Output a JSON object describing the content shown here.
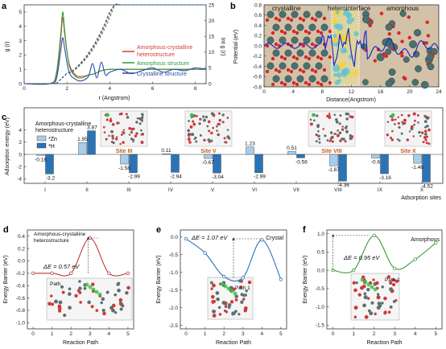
{
  "panel_a": {
    "letter": "a",
    "ylabel_left": "g (r)",
    "ylabel_right": "Int g (r)",
    "xlabel": "r (Angstrom)",
    "xticks": [
      "0",
      "2",
      "4",
      "6",
      "8"
    ],
    "yticks_left": [
      "0",
      "1",
      "2",
      "3",
      "4",
      "5"
    ],
    "yticks_right": [
      "0",
      "5",
      "10",
      "15",
      "20",
      "25"
    ],
    "legend": {
      "amorphous_crystalline": "Amorphous-crystalline heterostructure",
      "amorphous": "Amorphous structure",
      "crystalline": "Crystalline structure"
    }
  },
  "panel_b": {
    "letter": "b",
    "ylabel": "Potential (eV)",
    "xlabel": "Distance(Angstrom)",
    "region_crystalline": "crystalline",
    "region_interface": "heterointerface",
    "region_amorphous": "amorphous",
    "xticks": [
      "0",
      "4",
      "8",
      "12",
      "16",
      "20",
      "24"
    ],
    "yticks": [
      "0.8",
      "0.6",
      "0.4",
      "0.2",
      "0.0",
      "-0.2",
      "-0.4",
      "-0.6",
      "-0.8"
    ]
  },
  "panel_c": {
    "letter": "c",
    "ylabel": "Adsorption energy (eV)",
    "xlabel": "Adsorption sites",
    "structure_title": "Amorphous-crystalline heterostructure",
    "legend_zn": "*Zn",
    "legend_h": "*H",
    "yticks": [
      "4",
      "2",
      "0",
      "-2",
      "-4"
    ],
    "site_labels": [
      "Site III",
      "Site V",
      "Site VIII",
      "Site X"
    ]
  },
  "panel_d": {
    "letter": "d",
    "title": "Amorphous-crystalline heterostructure",
    "delta_e": "ΔE = 0.57 eV",
    "path_label": "Path",
    "ylabel": "Energy Barrier (eV)",
    "xlabel": "Reaction Path",
    "xticks": [
      "0",
      "1",
      "2",
      "3",
      "4",
      "5"
    ],
    "yticks": [
      "0.4",
      "0.2",
      "0.0",
      "-0.2",
      "-0.4",
      "-0.6",
      "-0.8",
      "-1.0"
    ]
  },
  "panel_e": {
    "letter": "e",
    "title": "Crystal",
    "delta_e": "ΔE = 1.07 eV",
    "path_label": "Path 1",
    "ylabel": "Energy Barrier (eV)",
    "xlabel": "Reaction Path",
    "xticks": [
      "0",
      "1",
      "2",
      "3",
      "4",
      "5"
    ],
    "yticks": [
      "0.0",
      "-0.5",
      "-1.0",
      "-1.5",
      "-2.0",
      "-2.5"
    ]
  },
  "panel_f": {
    "letter": "f",
    "title": "Amorphous",
    "delta_e": "ΔE = 0.95 eV",
    "path_label": "Path 1",
    "ylabel": "Energy Barrier (eV)",
    "xlabel": "Reaction Path",
    "xticks": [
      "0",
      "1",
      "2",
      "3",
      "4",
      "5"
    ],
    "yticks": [
      "1.0",
      "0.5",
      "0.0",
      "-0.5",
      "-1.0",
      "-1.5"
    ]
  },
  "chart_data": [
    {
      "type": "line",
      "panel": "a",
      "xlabel": "r (Angstrom)",
      "ylabel": "g (r)",
      "xlim": [
        0,
        8.5
      ],
      "ylim": [
        0,
        5.5
      ],
      "y2lim": [
        0,
        25
      ],
      "grid": false,
      "legend": "right",
      "series": [
        {
          "name": "Amorphous-crystalline heterostructure",
          "color": "#d63a3a",
          "x": [
            0,
            1.2,
            1.5,
            1.7,
            1.8,
            1.9,
            2.1,
            2.4,
            2.7,
            3.0,
            3.3,
            3.6,
            4.0,
            4.5,
            5.0,
            5.5,
            6.0,
            6.5,
            7.0,
            7.5,
            8.0,
            8.5
          ],
          "y": [
            0,
            0,
            0.6,
            3.0,
            4.6,
            3.4,
            1.4,
            0.6,
            0.5,
            0.6,
            0.7,
            0.9,
            1.0,
            1.0,
            1.0,
            1.0,
            1.0,
            1.0,
            1.0,
            1.0,
            1.0,
            1.0
          ]
        },
        {
          "name": "Amorphous structure",
          "color": "#2e9a35",
          "x": [
            0,
            1.2,
            1.5,
            1.7,
            1.8,
            1.9,
            2.1,
            2.4,
            2.7,
            3.0,
            3.3,
            3.6,
            4.0,
            4.5,
            5.0,
            5.5,
            6.0,
            6.5,
            7.0,
            7.5,
            8.0,
            8.5
          ],
          "y": [
            0,
            0,
            0.7,
            3.3,
            5.0,
            3.6,
            1.3,
            0.5,
            0.4,
            0.6,
            0.7,
            0.9,
            1.0,
            1.0,
            1.0,
            1.0,
            1.0,
            1.0,
            1.0,
            1.0,
            1.0,
            1.0
          ]
        },
        {
          "name": "Crystalline structure",
          "color": "#2a4aa8",
          "x": [
            0,
            1.2,
            1.5,
            1.7,
            1.8,
            1.9,
            2.1,
            2.4,
            2.7,
            3.0,
            3.2,
            3.4,
            3.6,
            3.8,
            4.0,
            4.5,
            5.0,
            5.5,
            6.0,
            6.5,
            7.0,
            7.5,
            8.0,
            8.5
          ],
          "y": [
            0,
            0,
            0.3,
            2.2,
            3.2,
            2.4,
            0.8,
            0.3,
            0.2,
            0.5,
            1.4,
            0.4,
            1.5,
            0.6,
            0.8,
            1.0,
            0.7,
            0.9,
            1.1,
            0.8,
            1.0,
            0.9,
            1.1,
            1.0
          ]
        }
      ]
    },
    {
      "type": "bar",
      "panel": "c",
      "xlabel": "Adsorption sites",
      "ylabel": "Adsorption energy (eV)",
      "ylim": [
        -5,
        5
      ],
      "categories": [
        "I",
        "II",
        "III",
        "IV",
        "V",
        "VI",
        "VII",
        "VIII",
        "IX",
        "X"
      ],
      "series": [
        {
          "name": "*Zn",
          "color": "#a9cde8",
          "values": [
            -0.18,
            1.95,
            -1.58,
            0.11,
            -0.67,
            1.23,
            0.51,
            -1.87,
            -0.6,
            -1.46
          ]
        },
        {
          "name": "*H",
          "color": "#2a74b6",
          "values": [
            -3.2,
            3.87,
            -2.99,
            -2.94,
            -3.04,
            -2.99,
            -0.56,
            -4.36,
            -3.16,
            -4.52
          ]
        }
      ],
      "data_labels": {
        "zn": [
          "-0.18",
          "1.95",
          "-1.58",
          "0.11",
          "-0.67",
          "1.23",
          "0.51",
          "-1.87",
          "-0.6",
          "-1.46"
        ],
        "h": [
          "-3.2",
          "3.87",
          "-2.99",
          "-2.94",
          "-3.04",
          "-2.99",
          "-0.56",
          "-4.36",
          "-3.16",
          "-4.52"
        ]
      }
    },
    {
      "type": "line",
      "panel": "d",
      "xlabel": "Reaction Path",
      "ylabel": "Energy Barrier (eV)",
      "xlim": [
        -0.3,
        5.3
      ],
      "ylim": [
        -1.1,
        0.5
      ],
      "series": [
        {
          "color": "#c03a3a",
          "x": [
            0,
            1,
            2,
            3,
            4,
            5
          ],
          "y": [
            -0.2,
            -0.2,
            -0.2,
            0.37,
            -0.2,
            -0.2
          ]
        }
      ]
    },
    {
      "type": "line",
      "panel": "e",
      "xlabel": "Reaction Path",
      "ylabel": "Energy Barrier (eV)",
      "xlim": [
        -0.3,
        5.3
      ],
      "ylim": [
        -2.6,
        0.2
      ],
      "series": [
        {
          "color": "#2a74b6",
          "x": [
            0,
            1,
            2,
            3,
            4,
            5
          ],
          "y": [
            -0.05,
            -0.45,
            -1.12,
            -1.15,
            -0.08,
            -1.2
          ]
        }
      ]
    },
    {
      "type": "line",
      "panel": "f",
      "xlabel": "Reaction Path",
      "ylabel": "Energy Barrier (eV)",
      "xlim": [
        -0.3,
        5.3
      ],
      "ylim": [
        -1.6,
        1.1
      ],
      "series": [
        {
          "color": "#3a9a35",
          "x": [
            0,
            1,
            2,
            3,
            4,
            5
          ],
          "y": [
            0.0,
            0.0,
            0.95,
            0.05,
            0.3,
            0.75
          ]
        }
      ]
    }
  ]
}
